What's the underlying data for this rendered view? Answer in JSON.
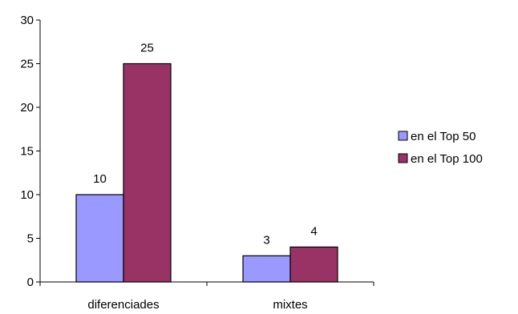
{
  "chart_data": {
    "type": "bar",
    "categories": [
      "diferenciades",
      "mixtes"
    ],
    "series": [
      {
        "name": "en el Top 50",
        "values": [
          10,
          3
        ],
        "color": "#9999ff"
      },
      {
        "name": "en el Top 100",
        "values": [
          25,
          4
        ],
        "color": "#993366"
      }
    ],
    "ylim": [
      0,
      30
    ],
    "yticks": [
      0,
      5,
      10,
      15,
      20,
      25,
      30
    ],
    "data_labels": true,
    "grid": false,
    "legend_position": "right"
  }
}
